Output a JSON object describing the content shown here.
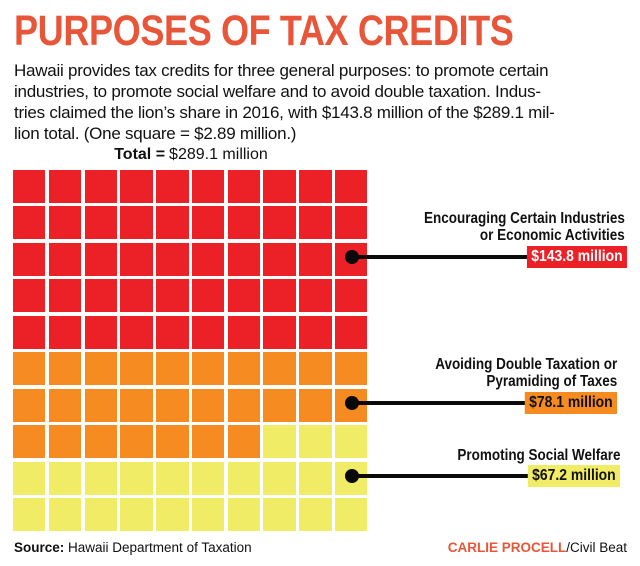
{
  "header": {
    "title": "PURPOSES OF TAX CREDITS",
    "intro": "Hawaii provides tax credits for three general purposes: to promote certain\nindustries, to promote social welfare and to avoid double taxation. Indus-\ntries claimed the lion’s share in 2016, with $143.8 million of the $289.1 mil-\nlion total. (One square = $2.89 million.)"
  },
  "chart_data": {
    "type": "waffle",
    "title": "Total = $289.1 million",
    "total_label_bold": "Total =",
    "total_value": "$289.1 million",
    "grid": {
      "rows": 10,
      "cols": 10,
      "square_value_million": 2.89,
      "total_million": 289.1
    },
    "series": [
      {
        "name": "Encouraging Certain Industries or Economic Activities",
        "value_million": 143.8,
        "squares": 50,
        "color": "#EC2127"
      },
      {
        "name": "Avoiding Double Taxation or Pyramiding of Taxes",
        "value_million": 78.1,
        "squares": 27,
        "color": "#F68C21"
      },
      {
        "name": "Promoting Social Welfare",
        "value_million": 67.2,
        "squares": 23,
        "color": "#F0EC65"
      }
    ],
    "legend_position": "right-callouts"
  },
  "callouts": [
    {
      "label": "Encouraging Certain Industries\nor Economic Activities",
      "value": "$143.8 million",
      "badge_color": "#EC2127",
      "value_color": "#FFFFFF"
    },
    {
      "label": "Avoiding Double Taxation or\nPyramiding of Taxes",
      "value": "$78.1 million",
      "badge_color": "#F68C21",
      "value_color": "#111111"
    },
    {
      "label": "Promoting Social Welfare",
      "value": "$67.2 million",
      "badge_color": "#F0EC65",
      "value_color": "#111111"
    }
  ],
  "footer": {
    "source_label": "Source:",
    "source_text": " Hawaii Department of Taxation",
    "credit_author": "CARLIE PROCELL",
    "credit_org": "/Civil Beat"
  },
  "colors": {
    "accent": "#E8563A",
    "red": "#EC2127",
    "orange": "#F68C21",
    "yellow": "#F0EC65",
    "connector": "#0A0A0A"
  }
}
